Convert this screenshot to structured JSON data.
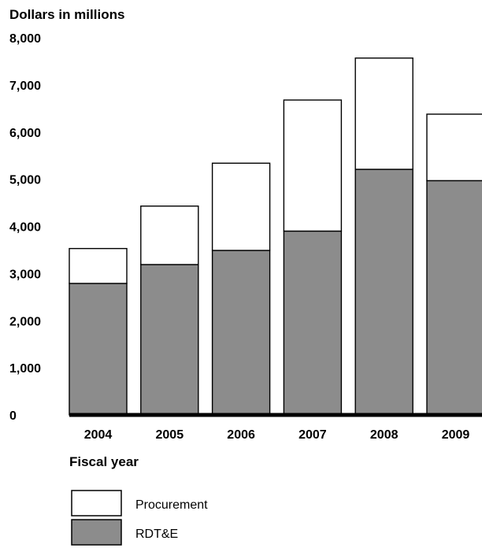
{
  "chart_data": {
    "type": "bar",
    "stacked": true,
    "ylabel": "Dollars in millions",
    "xlabel": "Fiscal year",
    "categories": [
      "2004",
      "2005",
      "2006",
      "2007",
      "2008",
      "2009"
    ],
    "series": [
      {
        "name": "RDT&E",
        "values": [
          2790,
          3190,
          3490,
          3900,
          5210,
          4970
        ],
        "color": "#8c8c8c"
      },
      {
        "name": "Procurement",
        "values": [
          740,
          1240,
          1850,
          2780,
          2360,
          1410
        ],
        "color": "#ffffff"
      }
    ],
    "yticks": [
      "0",
      "1,000",
      "2,000",
      "3,000",
      "4,000",
      "5,000",
      "6,000",
      "7,000",
      "8,000"
    ],
    "ylim": [
      0,
      8000
    ],
    "grid": false,
    "legend": {
      "position": "bottom-left",
      "entries": [
        "Procurement",
        "RDT&E"
      ]
    }
  }
}
